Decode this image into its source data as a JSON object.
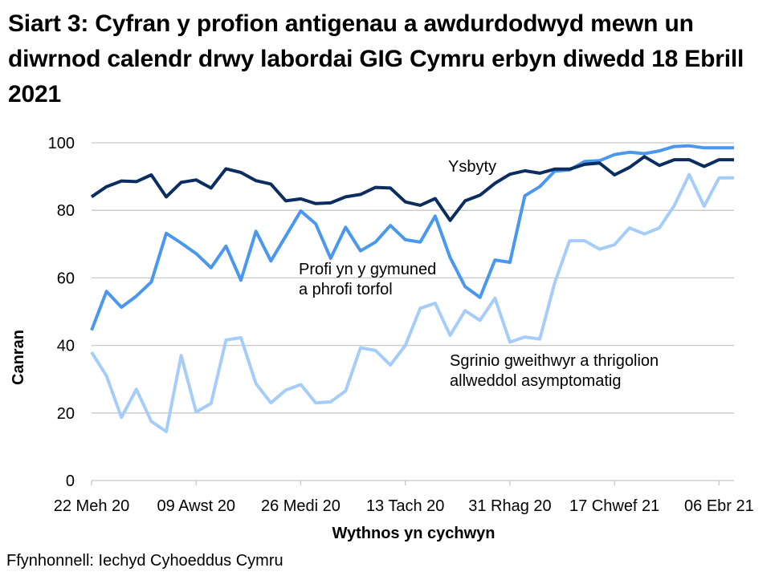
{
  "title": "Siart 3: Cyfran y profion antigenau a awdurdodwyd mewn un diwrnod calendr drwy labordai GIG Cymru erbyn diwedd 18 Ebrill 2021",
  "source": "Ffynhonnell: Iechyd Cyhoeddus Cymru",
  "chart_data": {
    "type": "line",
    "title": "Siart 3: Cyfran y profion antigenau a awdurdodwyd mewn un diwrnod calendr drwy labordai GIG Cymru erbyn diwedd 18 Ebrill 2021",
    "xlabel": "Wythnos yn cychwyn",
    "ylabel": "Canran",
    "ylim": [
      0,
      100
    ],
    "yticks": [
      0,
      20,
      40,
      60,
      80,
      100
    ],
    "grid": true,
    "legend_position": "inline-annotations",
    "x_tick_labels": [
      "22 Meh 20",
      "09 Awst 20",
      "26 Medi 20",
      "13 Tach 20",
      "31 Rhag 20",
      "17 Chwef 21",
      "06 Ebr 21"
    ],
    "x_tick_every": 7,
    "n_points": 44,
    "series": [
      {
        "name": "Ysbyty",
        "color": "#0b2d60",
        "label_lines": [
          "Ysbyty"
        ],
        "values": [
          84,
          87,
          88.7,
          88.5,
          90.5,
          84,
          88.3,
          89,
          86.6,
          92.3,
          91.2,
          88.8,
          87.8,
          82.8,
          83.4,
          82,
          82.2,
          84,
          84.7,
          86.8,
          86.6,
          82.5,
          81.5,
          83.5,
          77,
          82.8,
          84.5,
          88,
          90.7,
          91.7,
          91,
          92.2,
          92.2,
          93.6,
          94,
          90.5,
          92.7,
          95.9,
          93.3,
          95,
          95,
          93,
          95,
          95
        ]
      },
      {
        "name": "Profi yn y gymuned a phrofi torfol",
        "color": "#4a97f0",
        "label_lines": [
          "Profi yn y gymuned",
          "a phrofi torfol"
        ],
        "values": [
          44.5,
          56,
          51.3,
          54.6,
          58.8,
          73.2,
          70.3,
          67.2,
          63,
          69.4,
          59.3,
          73.8,
          65,
          72.4,
          79.8,
          76,
          65.8,
          75,
          68,
          70.6,
          75.5,
          71.3,
          70.6,
          78.3,
          66,
          57.4,
          54.2,
          65.3,
          64.6,
          84.3,
          87,
          91.6,
          92,
          94.5,
          94.7,
          96.5,
          97.2,
          96.8,
          97.6,
          98.9,
          99.1,
          98.5,
          98.5,
          98.5
        ]
      },
      {
        "name": "Sgrinio gweithwyr a thrigolion allweddol asymptomatig",
        "color": "#a6cdfa",
        "label_lines": [
          "Sgrinio gweithwyr a thrigolion",
          "allweddol asymptomatig"
        ],
        "values": [
          38,
          31,
          18.7,
          27,
          17.5,
          14.5,
          37,
          20.3,
          22.8,
          41.6,
          42.3,
          28.7,
          23,
          26.8,
          28.4,
          23,
          23.3,
          26.5,
          39.3,
          38.5,
          34.2,
          40,
          51,
          52.5,
          43,
          50.3,
          47.4,
          54,
          41,
          42.5,
          41.9,
          58.5,
          71,
          71,
          68.5,
          69.8,
          74.8,
          73,
          74.8,
          81.4,
          90.6,
          81.2,
          89.6,
          89.6
        ]
      }
    ]
  },
  "axis": {
    "ylabel": "Canran",
    "xlabel": "Wythnos yn cychwyn"
  }
}
